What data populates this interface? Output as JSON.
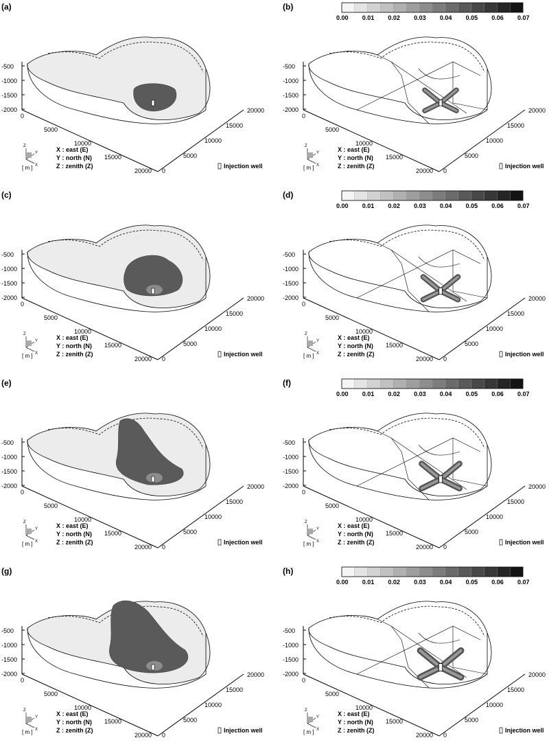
{
  "panel_labels": [
    "(a)",
    "(b)",
    "(c)",
    "(d)",
    "(e)",
    "(f)",
    "(g)",
    "(h)"
  ],
  "z_ticks": [
    "-500",
    "-1000",
    "-1500",
    "-2000"
  ],
  "x_ticks": [
    "0",
    "5000",
    "10000",
    "15000",
    "20000"
  ],
  "y_ticks": [
    "0",
    "5000",
    "10000",
    "15000",
    "20000"
  ],
  "colorbar": {
    "levels": 14,
    "min": 0.0,
    "max": 0.07,
    "ticks": [
      "0.00",
      "0.01",
      "0.02",
      "0.03",
      "0.04",
      "0.05",
      "0.06",
      "0.07"
    ]
  },
  "axis_legend": {
    "unit": "[ m ]",
    "x_desc": "X : east (E)",
    "y_desc": "Y : north (N)",
    "z_desc": "Z : zenith (Z)",
    "axis_letters": [
      "Z",
      "Y",
      "X"
    ]
  },
  "injection_well_label": "Injection well",
  "colors": {
    "plume": "#5a5a5a",
    "plume_light": "#8c8c8c",
    "surface": "#ececec",
    "line": "#000000"
  }
}
